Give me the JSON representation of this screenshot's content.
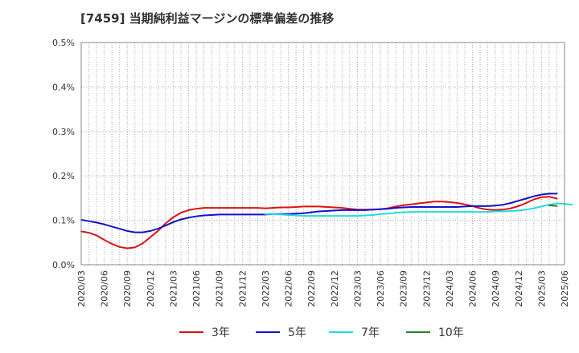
{
  "chart_data": {
    "type": "line",
    "title": "[7459]  当期純利益マージンの標準偏差の推移",
    "xlabel": "",
    "ylabel": "",
    "ylim": [
      0,
      0.5
    ],
    "y_ticks": [
      "0.0%",
      "0.1%",
      "0.2%",
      "0.3%",
      "0.4%",
      "0.5%"
    ],
    "y_tick_values": [
      0,
      0.1,
      0.2,
      0.3,
      0.4,
      0.5
    ],
    "x_ticks": [
      "2020/03",
      "2020/06",
      "2020/09",
      "2020/12",
      "2021/03",
      "2021/06",
      "2021/09",
      "2021/12",
      "2022/03",
      "2022/06",
      "2022/09",
      "2022/12",
      "2023/03",
      "2023/06",
      "2023/09",
      "2023/12",
      "2024/03",
      "2024/06",
      "2024/09",
      "2024/12",
      "2025/03",
      "2025/06"
    ],
    "x_range": [
      0,
      63
    ],
    "grid": true,
    "legend_position": "bottom",
    "series": [
      {
        "name": "3年",
        "color": "#dd1111",
        "start": 0,
        "values": [
          0.075,
          0.072,
          0.066,
          0.056,
          0.047,
          0.04,
          0.037,
          0.039,
          0.048,
          0.062,
          0.076,
          0.093,
          0.107,
          0.117,
          0.123,
          0.126,
          0.128,
          0.128,
          0.128,
          0.128,
          0.128,
          0.128,
          0.128,
          0.128,
          0.127,
          0.128,
          0.129,
          0.129,
          0.13,
          0.131,
          0.131,
          0.131,
          0.13,
          0.129,
          0.128,
          0.126,
          0.124,
          0.124,
          0.124,
          0.125,
          0.127,
          0.131,
          0.134,
          0.136,
          0.138,
          0.14,
          0.142,
          0.142,
          0.141,
          0.139,
          0.136,
          0.132,
          0.127,
          0.124,
          0.123,
          0.124,
          0.127,
          0.132,
          0.139,
          0.147,
          0.152,
          0.153,
          0.149
        ]
      },
      {
        "name": "5年",
        "color": "#1111cc",
        "start": 0,
        "values": [
          0.101,
          0.098,
          0.095,
          0.091,
          0.086,
          0.081,
          0.076,
          0.073,
          0.073,
          0.076,
          0.081,
          0.088,
          0.096,
          0.102,
          0.106,
          0.109,
          0.111,
          0.112,
          0.113,
          0.113,
          0.113,
          0.113,
          0.113,
          0.113,
          0.113,
          0.114,
          0.114,
          0.114,
          0.115,
          0.116,
          0.118,
          0.12,
          0.121,
          0.122,
          0.123,
          0.123,
          0.123,
          0.123,
          0.124,
          0.125,
          0.126,
          0.128,
          0.129,
          0.13,
          0.13,
          0.13,
          0.13,
          0.13,
          0.13,
          0.13,
          0.131,
          0.132,
          0.132,
          0.132,
          0.133,
          0.135,
          0.139,
          0.144,
          0.149,
          0.154,
          0.158,
          0.16,
          0.16
        ]
      },
      {
        "name": "7年",
        "color": "#22dddd",
        "start": 24,
        "values": [
          0.114,
          0.114,
          0.113,
          0.112,
          0.111,
          0.11,
          0.11,
          0.11,
          0.11,
          0.11,
          0.11,
          0.11,
          0.11,
          0.111,
          0.112,
          0.114,
          0.115,
          0.117,
          0.118,
          0.119,
          0.119,
          0.119,
          0.119,
          0.119,
          0.119,
          0.119,
          0.119,
          0.119,
          0.119,
          0.119,
          0.12,
          0.12,
          0.121,
          0.122,
          0.124,
          0.127,
          0.131,
          0.135,
          0.138,
          0.137,
          0.135
        ]
      },
      {
        "name": "10年",
        "color": "#228822",
        "start": 61,
        "values": [
          0.134,
          0.132
        ]
      }
    ]
  }
}
